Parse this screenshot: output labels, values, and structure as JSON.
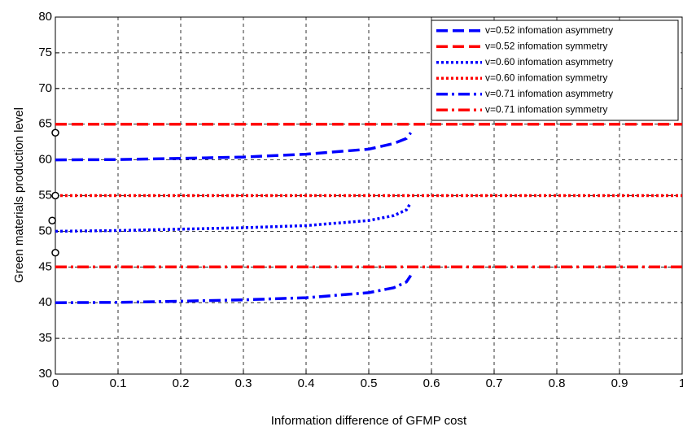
{
  "chart_data": {
    "type": "line",
    "xlabel": "Information difference of GFMP cost",
    "ylabel": "Green materials production level",
    "xlim": [
      0,
      1
    ],
    "ylim": [
      30,
      80
    ],
    "xticks": [
      0,
      0.1,
      0.2,
      0.3,
      0.4,
      0.5,
      0.6,
      0.7,
      0.8,
      0.9,
      1
    ],
    "yticks": [
      30,
      35,
      40,
      45,
      50,
      55,
      60,
      65,
      70,
      75,
      80
    ],
    "grid": true,
    "legend": "top-right",
    "series": [
      {
        "name": "v=0.52 infomation asymmetry",
        "color": "#0000ff",
        "dash": "dashed",
        "x": [
          0,
          0.1,
          0.2,
          0.3,
          0.4,
          0.5,
          0.54,
          0.56,
          0.567
        ],
        "values": [
          60,
          60.05,
          60.2,
          60.4,
          60.8,
          61.5,
          62.3,
          63,
          63.8
        ]
      },
      {
        "name": "v=0.52 infomation symmetry",
        "color": "#ff0000",
        "dash": "dashed",
        "x": [
          0,
          1
        ],
        "values": [
          65,
          65
        ]
      },
      {
        "name": "v=0.60 infomation asymmetry",
        "color": "#0000ff",
        "dash": "dotted",
        "x": [
          0,
          0.1,
          0.2,
          0.3,
          0.4,
          0.5,
          0.54,
          0.56,
          0.567
        ],
        "values": [
          50,
          50.1,
          50.3,
          50.5,
          50.8,
          51.5,
          52.2,
          53,
          54
        ]
      },
      {
        "name": "v=0.60 infomation symmetry",
        "color": "#ff0000",
        "dash": "dotted",
        "x": [
          0,
          1
        ],
        "values": [
          55,
          55
        ]
      },
      {
        "name": "v=0.71 infomation asymmetry",
        "color": "#0000ff",
        "dash": "dashdot",
        "x": [
          0,
          0.1,
          0.2,
          0.3,
          0.4,
          0.5,
          0.54,
          0.56,
          0.567
        ],
        "values": [
          40,
          40.05,
          40.2,
          40.4,
          40.7,
          41.4,
          42.1,
          42.9,
          43.8
        ]
      },
      {
        "name": "v=0.71 infomation symmetry",
        "color": "#ff0000",
        "dash": "dashdot",
        "x": [
          0,
          1
        ],
        "values": [
          45,
          45
        ]
      }
    ],
    "markers": {
      "x": [
        0,
        0,
        0,
        -0.005
      ],
      "y": [
        63.8,
        55,
        47,
        51.5
      ]
    }
  }
}
